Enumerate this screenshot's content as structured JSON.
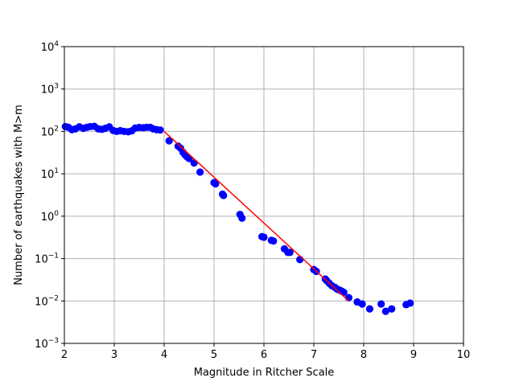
{
  "chart_data": {
    "type": "scatter",
    "title": "",
    "xlabel": "Magnitude in Ritcher Scale",
    "ylabel": "Number of earthquakes with M>m",
    "xlim": [
      2,
      10
    ],
    "ylim": [
      0.001,
      10000
    ],
    "yscale": "log",
    "grid": true,
    "x_ticks": [
      "2",
      "3",
      "4",
      "5",
      "6",
      "7",
      "8",
      "9",
      "10"
    ],
    "y_ticks": [
      {
        "base": "10",
        "exp": "−3"
      },
      {
        "base": "10",
        "exp": "−2"
      },
      {
        "base": "10",
        "exp": "−1"
      },
      {
        "base": "10",
        "exp": "0"
      },
      {
        "base": "10",
        "exp": "1"
      },
      {
        "base": "10",
        "exp": "2"
      },
      {
        "base": "10",
        "exp": "3"
      },
      {
        "base": "10",
        "exp": "4"
      }
    ],
    "series": [
      {
        "kind": "scatter",
        "color": "#0000ff",
        "points": [
          [
            2.02,
            130
          ],
          [
            2.08,
            125
          ],
          [
            2.15,
            110
          ],
          [
            2.22,
            115
          ],
          [
            2.3,
            128
          ],
          [
            2.38,
            118
          ],
          [
            2.45,
            125
          ],
          [
            2.52,
            130
          ],
          [
            2.6,
            132
          ],
          [
            2.68,
            115
          ],
          [
            2.75,
            112
          ],
          [
            2.82,
            118
          ],
          [
            2.9,
            128
          ],
          [
            2.98,
            105
          ],
          [
            3.05,
            100
          ],
          [
            3.12,
            104
          ],
          [
            3.2,
            100
          ],
          [
            3.28,
            98
          ],
          [
            3.35,
            103
          ],
          [
            3.42,
            120
          ],
          [
            3.5,
            124
          ],
          [
            3.58,
            122
          ],
          [
            3.65,
            125
          ],
          [
            3.72,
            125
          ],
          [
            3.78,
            115
          ],
          [
            3.85,
            110
          ],
          [
            3.92,
            108
          ],
          [
            4.1,
            60
          ],
          [
            4.28,
            45
          ],
          [
            4.33,
            40
          ],
          [
            4.38,
            32
          ],
          [
            4.42,
            28
          ],
          [
            4.46,
            25
          ],
          [
            4.5,
            23
          ],
          [
            4.6,
            18
          ],
          [
            4.72,
            11
          ],
          [
            5.0,
            6.2
          ],
          [
            5.03,
            5.8
          ],
          [
            5.17,
            3.3
          ],
          [
            5.19,
            3.1
          ],
          [
            5.52,
            1.1
          ],
          [
            5.56,
            0.9
          ],
          [
            5.96,
            0.33
          ],
          [
            6.0,
            0.32
          ],
          [
            6.15,
            0.27
          ],
          [
            6.19,
            0.26
          ],
          [
            6.41,
            0.17
          ],
          [
            6.48,
            0.14
          ],
          [
            6.52,
            0.14
          ],
          [
            6.72,
            0.095
          ],
          [
            7.0,
            0.055
          ],
          [
            7.05,
            0.05
          ],
          [
            7.23,
            0.033
          ],
          [
            7.26,
            0.03
          ],
          [
            7.31,
            0.026
          ],
          [
            7.36,
            0.023
          ],
          [
            7.42,
            0.021
          ],
          [
            7.47,
            0.019
          ],
          [
            7.52,
            0.018
          ],
          [
            7.56,
            0.017
          ],
          [
            7.6,
            0.016
          ],
          [
            7.7,
            0.012
          ],
          [
            7.87,
            0.0095
          ],
          [
            7.97,
            0.0085
          ],
          [
            8.12,
            0.0065
          ],
          [
            8.35,
            0.0085
          ],
          [
            8.44,
            0.0057
          ],
          [
            8.56,
            0.0065
          ],
          [
            8.85,
            0.0082
          ],
          [
            8.93,
            0.0089
          ]
        ]
      },
      {
        "kind": "line",
        "color": "#ff0000",
        "points": [
          [
            4.0,
            100
          ],
          [
            7.7,
            0.01
          ]
        ]
      }
    ]
  }
}
